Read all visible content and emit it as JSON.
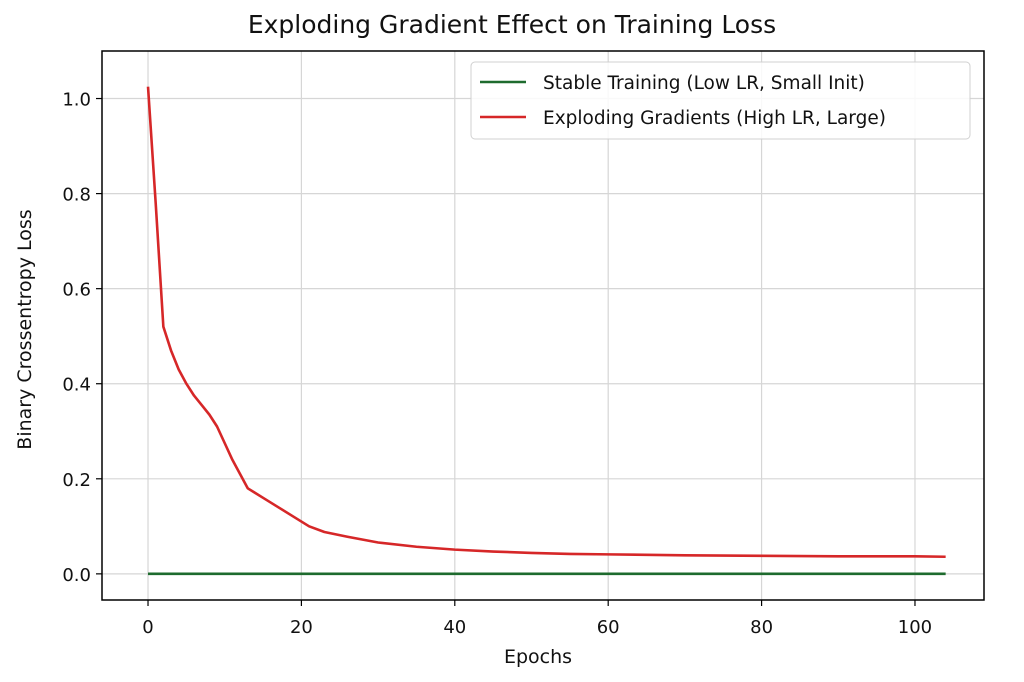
{
  "chart_data": {
    "type": "line",
    "title": "Exploding Gradient Effect on Training Loss",
    "xlabel": "Epochs",
    "ylabel": "Binary Crossentropy Loss",
    "xlim": [
      -6,
      109
    ],
    "ylim": [
      -0.055,
      1.1
    ],
    "xticks": [
      0,
      20,
      40,
      60,
      80,
      100
    ],
    "yticks": [
      0.0,
      0.2,
      0.4,
      0.6,
      0.8,
      1.0
    ],
    "xtick_labels": [
      "0",
      "20",
      "40",
      "60",
      "80",
      "100"
    ],
    "ytick_labels": [
      "0.0",
      "0.2",
      "0.4",
      "0.6",
      "0.8",
      "1.0"
    ],
    "grid": true,
    "legend_position": "upper right",
    "series": [
      {
        "name": "Stable Training (Low LR, Small Init)",
        "color": "#1e6b2e",
        "x": [
          0,
          10,
          20,
          30,
          40,
          50,
          60,
          70,
          80,
          90,
          100,
          104
        ],
        "y": [
          0.0,
          0.0,
          0.0,
          0.0,
          0.0,
          0.0,
          0.0,
          0.0,
          0.0,
          0.0,
          0.0,
          0.0
        ]
      },
      {
        "name": "Exploding Gradients (High LR, Large)",
        "color": "#d62728",
        "x": [
          0,
          1,
          2,
          3,
          4,
          5,
          6,
          7,
          8,
          9,
          10,
          11,
          12,
          13,
          15,
          17,
          19,
          21,
          23,
          26,
          30,
          35,
          40,
          45,
          50,
          55,
          60,
          70,
          80,
          90,
          100,
          104
        ],
        "y": [
          1.025,
          0.78,
          0.52,
          0.47,
          0.43,
          0.4,
          0.375,
          0.355,
          0.335,
          0.31,
          0.275,
          0.24,
          0.21,
          0.18,
          0.16,
          0.14,
          0.12,
          0.1,
          0.088,
          0.078,
          0.066,
          0.057,
          0.051,
          0.047,
          0.044,
          0.042,
          0.041,
          0.039,
          0.038,
          0.037,
          0.037,
          0.036
        ]
      }
    ]
  }
}
